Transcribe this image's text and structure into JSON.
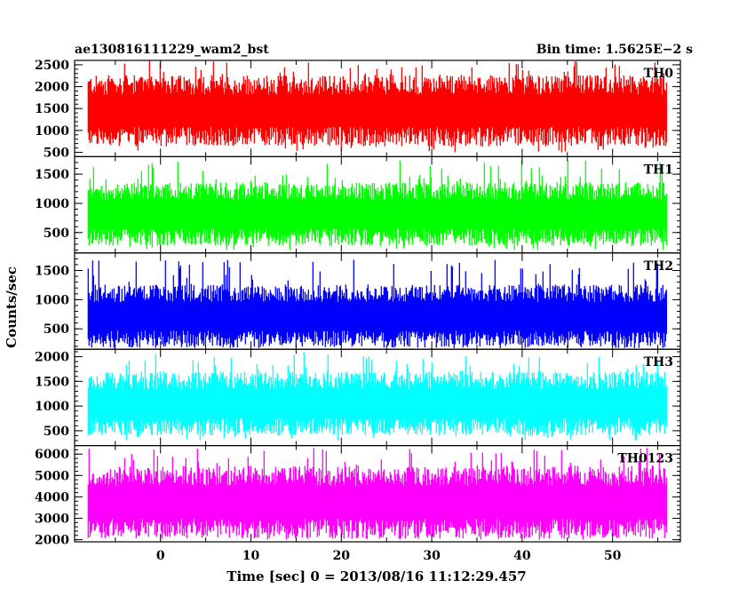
{
  "header": {
    "left": "ae130816111229_wam2_bst",
    "right": "Bin time: 1.5625E−2 s"
  },
  "chart_data": {
    "type": "line",
    "title": "ae130816111229_wam2_bst",
    "subtitle": "Bin time: 1.5625E−2 s",
    "xlabel": "Time [sec] 0 = 2013/08/16 11:12:29.457",
    "ylabel": "Counts/sec",
    "xlim": [
      -9.5,
      57.5
    ],
    "data_xlim": [
      -8,
      56
    ],
    "x_ticks": [
      0,
      10,
      20,
      30,
      40,
      50
    ],
    "grid": false,
    "legend": "none",
    "panels": [
      {
        "name": "TH0",
        "color": "#ff0000",
        "ylim": [
          400,
          2600
        ],
        "y_ticks": [
          500,
          1000,
          1500,
          2000,
          2500
        ],
        "typical_range": [
          950,
          1950
        ],
        "extreme_range": [
          500,
          2600
        ]
      },
      {
        "name": "TH1",
        "color": "#00ff00",
        "ylim": [
          150,
          1800
        ],
        "y_ticks": [
          500,
          1000,
          1500
        ],
        "typical_range": [
          480,
          1150
        ],
        "extreme_range": [
          200,
          1750
        ]
      },
      {
        "name": "TH2",
        "color": "#0000ff",
        "ylim": [
          150,
          1800
        ],
        "y_ticks": [
          500,
          1000,
          1500
        ],
        "typical_range": [
          380,
          1050
        ],
        "extreme_range": [
          200,
          1700
        ]
      },
      {
        "name": "TH3",
        "color": "#00ffff",
        "ylim": [
          200,
          2150
        ],
        "y_ticks": [
          500,
          1000,
          1500,
          2000
        ],
        "typical_range": [
          650,
          1450
        ],
        "extreme_range": [
          300,
          2100
        ]
      },
      {
        "name": "TH0123",
        "color": "#ff00ff",
        "ylim": [
          1900,
          6400
        ],
        "y_ticks": [
          2000,
          3000,
          4000,
          5000,
          6000
        ],
        "typical_range": [
          2700,
          4800
        ],
        "extreme_range": [
          2000,
          6300
        ]
      }
    ]
  }
}
